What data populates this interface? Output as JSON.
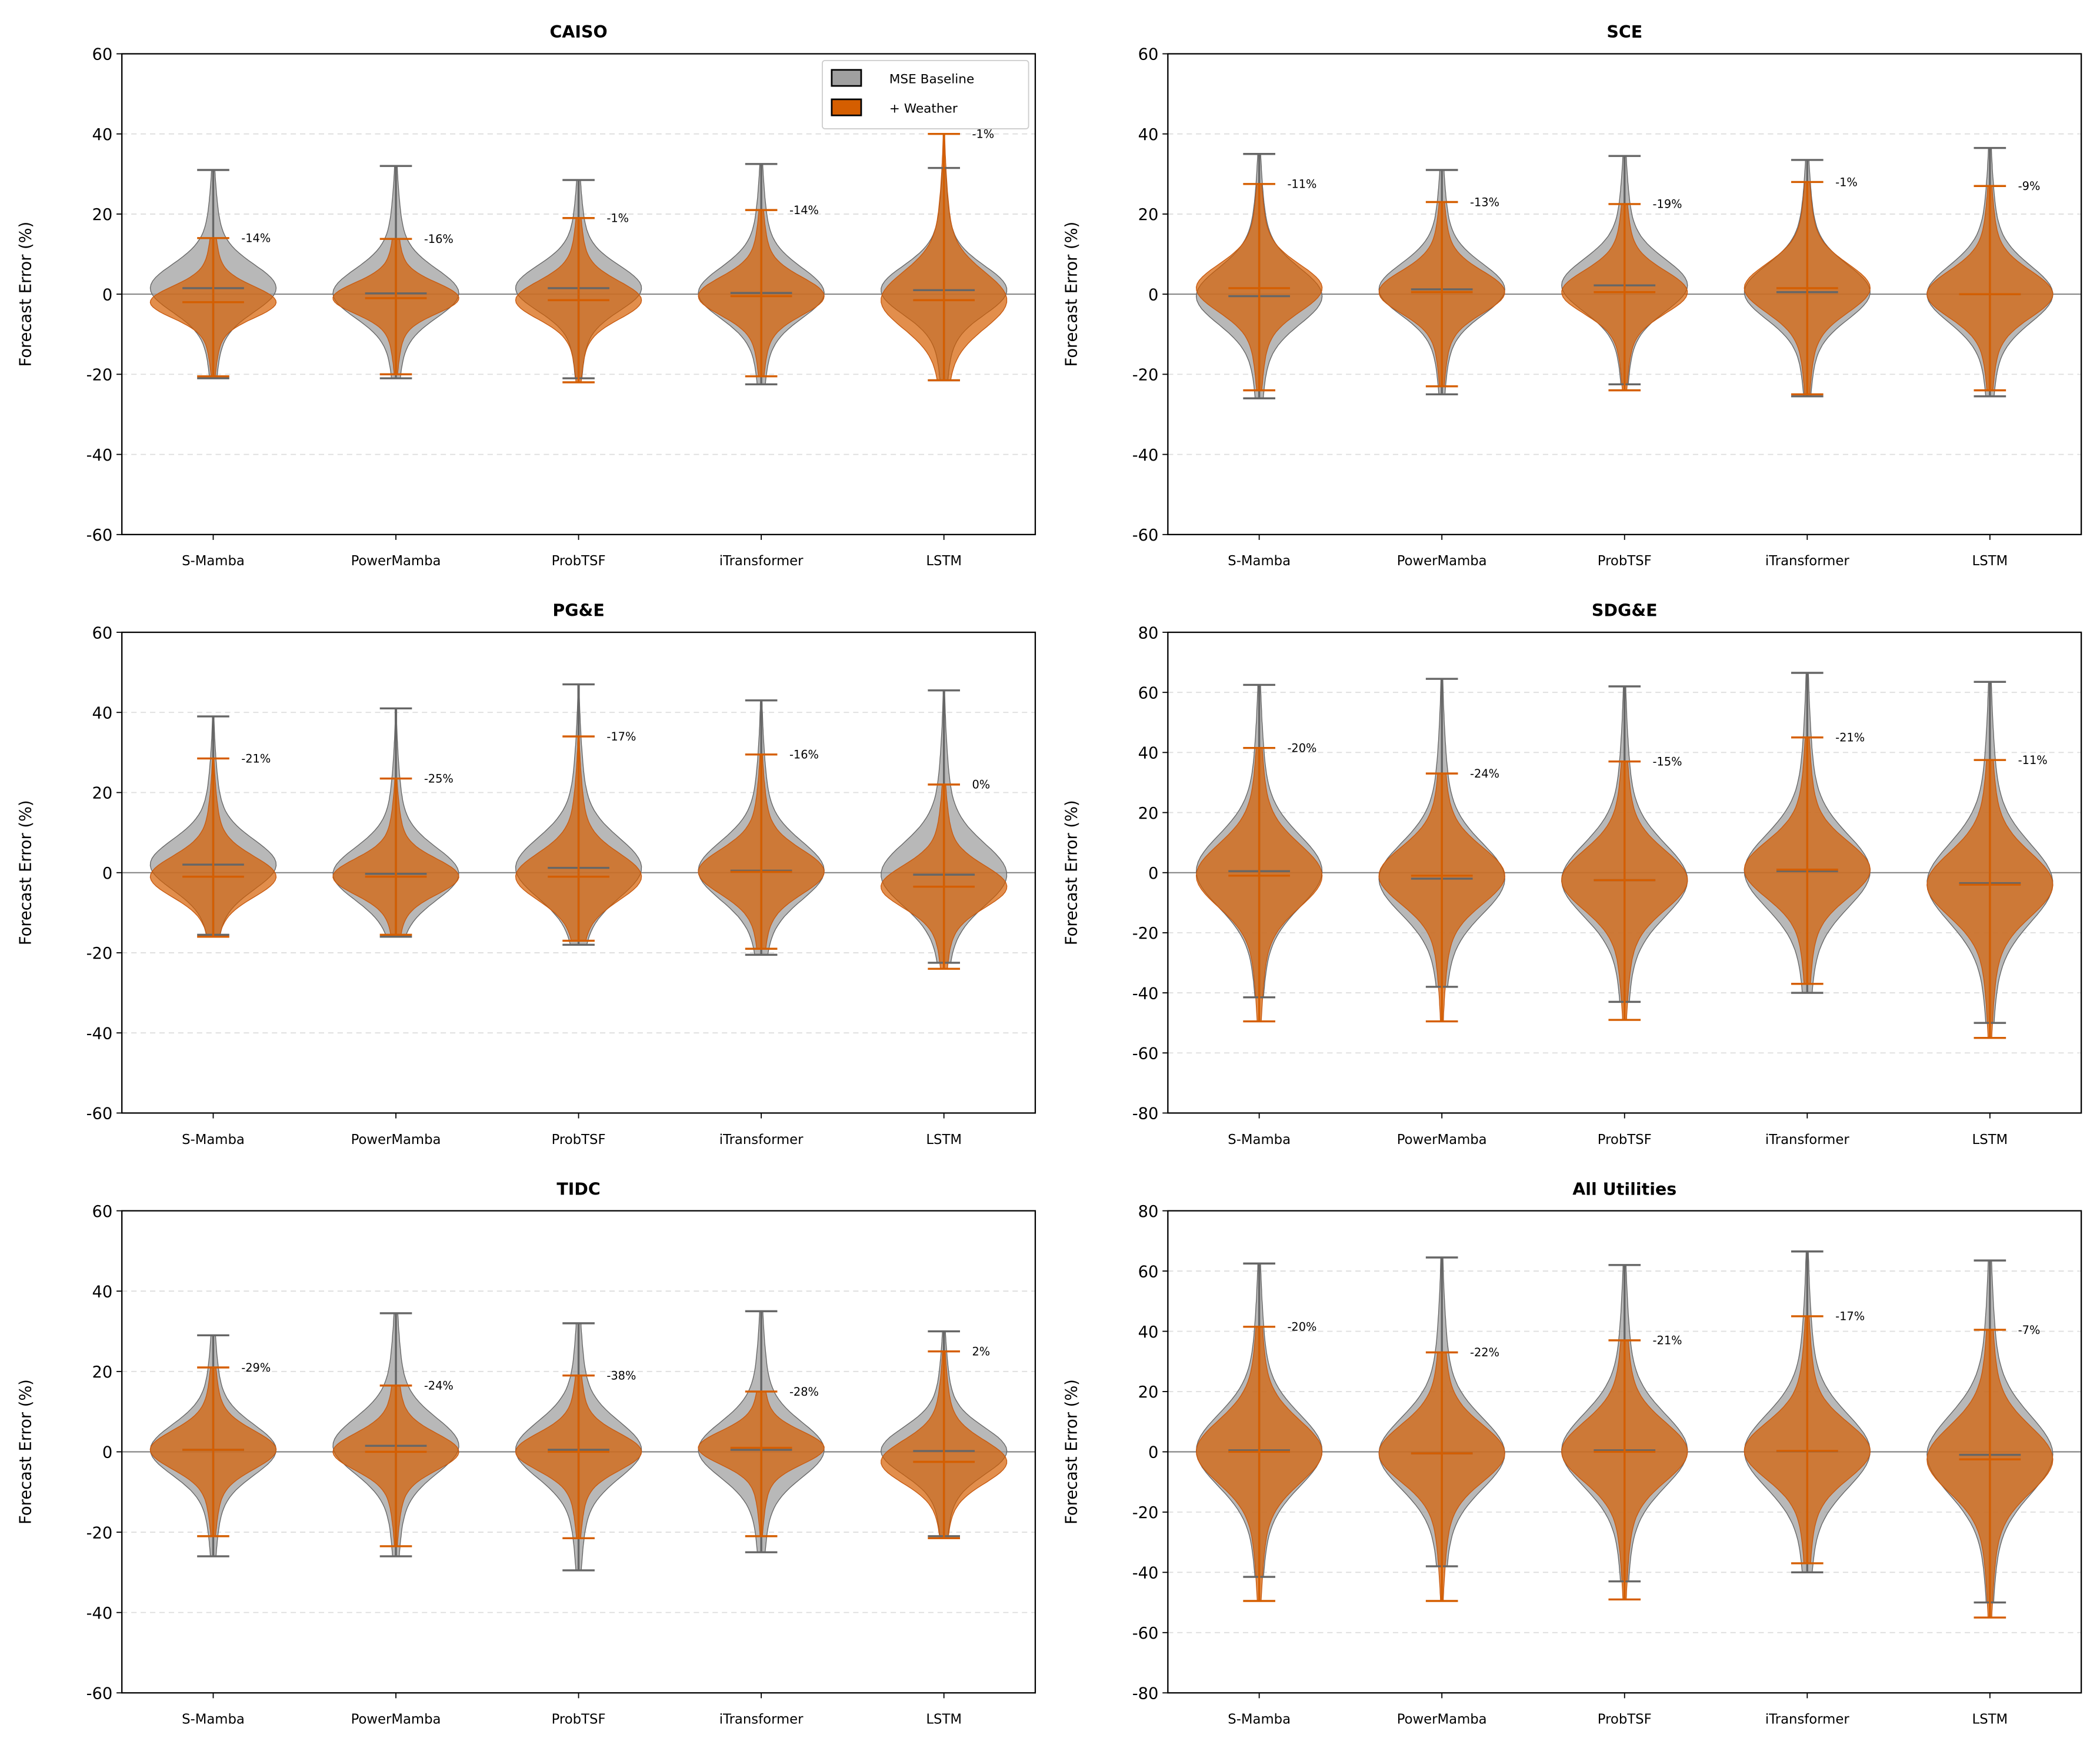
{
  "colors": {
    "baseline_fill": "#a0a0a0",
    "baseline_line": "#666666",
    "weather_fill": "#d55e00",
    "weather_line": "#d55e00",
    "zero_line": "#808080",
    "grid": "#dddddd"
  },
  "legend": {
    "placement": "top-right",
    "panel": 0,
    "items": [
      "MSE Baseline",
      "+ Weather"
    ]
  },
  "chart_data": [
    {
      "type": "violin",
      "title": "CAISO",
      "ylabel": "Forecast Error (%)",
      "ylim": [
        -60,
        60
      ],
      "yticks": [
        -60,
        -40,
        -20,
        0,
        20,
        40,
        60
      ],
      "grid": "dashed-y",
      "categories": [
        "S-Mamba",
        "PowerMamba",
        "ProbTSF",
        "iTransformer",
        "LSTM"
      ],
      "series": [
        {
          "name": "MSE Baseline",
          "max": [
            31,
            32,
            28.5,
            32.5,
            31.5
          ],
          "min": [
            -21,
            -21,
            -21,
            -22.5,
            -21.5
          ],
          "median": [
            1.5,
            0.2,
            1.5,
            0.3,
            1
          ]
        },
        {
          "name": "+ Weather",
          "max": [
            14,
            13.8,
            19,
            21,
            40
          ],
          "min": [
            -20.5,
            -20,
            -22,
            -20.5,
            -21.5
          ],
          "median": [
            -2,
            -1,
            -1.5,
            -0.5,
            -1.5
          ]
        }
      ],
      "annotations": [
        "-14%",
        "-16%",
        "-1%",
        "-14%",
        "-1%"
      ]
    },
    {
      "type": "violin",
      "title": "SCE",
      "ylabel": "Forecast Error (%)",
      "ylim": [
        -60,
        60
      ],
      "yticks": [
        -60,
        -40,
        -20,
        0,
        20,
        40,
        60
      ],
      "grid": "dashed-y",
      "categories": [
        "S-Mamba",
        "PowerMamba",
        "ProbTSF",
        "iTransformer",
        "LSTM"
      ],
      "series": [
        {
          "name": "MSE Baseline",
          "max": [
            35,
            31,
            34.5,
            33.5,
            36.5
          ],
          "min": [
            -26,
            -25,
            -22.5,
            -25.5,
            -25.5
          ],
          "median": [
            -0.5,
            1.2,
            2.2,
            0.5,
            0
          ]
        },
        {
          "name": "+ Weather",
          "max": [
            27.5,
            23,
            22.5,
            28,
            27
          ],
          "min": [
            -24,
            -23,
            -24,
            -25,
            -24
          ],
          "median": [
            1.5,
            0.5,
            0.5,
            1.5,
            0
          ]
        }
      ],
      "annotations": [
        "-11%",
        "-13%",
        "-19%",
        "-1%",
        "-9%"
      ]
    },
    {
      "type": "violin",
      "title": "PG&E",
      "ylabel": "Forecast Error (%)",
      "ylim": [
        -60,
        60
      ],
      "yticks": [
        -60,
        -40,
        -20,
        0,
        20,
        40,
        60
      ],
      "grid": "dashed-y",
      "categories": [
        "S-Mamba",
        "PowerMamba",
        "ProbTSF",
        "iTransformer",
        "LSTM"
      ],
      "series": [
        {
          "name": "MSE Baseline",
          "max": [
            39,
            41,
            47,
            43,
            45.5
          ],
          "min": [
            -15.5,
            -16,
            -18,
            -20.5,
            -22.5
          ],
          "median": [
            2,
            -0.3,
            1.2,
            0.5,
            -0.5
          ]
        },
        {
          "name": "+ Weather",
          "max": [
            28.5,
            23.5,
            34,
            29.5,
            22
          ],
          "min": [
            -16,
            -15.5,
            -17,
            -19,
            -24
          ],
          "median": [
            -1,
            -1,
            -1,
            0.2,
            -3.5
          ]
        }
      ],
      "annotations": [
        "-21%",
        "-25%",
        "-17%",
        "-16%",
        "0%"
      ]
    },
    {
      "type": "violin",
      "title": "SDG&E",
      "ylabel": "Forecast Error (%)",
      "ylim": [
        -80,
        80
      ],
      "yticks": [
        -80,
        -60,
        -40,
        -20,
        0,
        20,
        40,
        60,
        80
      ],
      "grid": "dashed-y",
      "categories": [
        "S-Mamba",
        "PowerMamba",
        "ProbTSF",
        "iTransformer",
        "LSTM"
      ],
      "series": [
        {
          "name": "MSE Baseline",
          "max": [
            62.5,
            64.5,
            62,
            66.5,
            63.5
          ],
          "min": [
            -41.5,
            -38,
            -43,
            -40,
            -50
          ],
          "median": [
            0.5,
            -2,
            -2.5,
            0.5,
            -3.5
          ]
        },
        {
          "name": "+ Weather",
          "max": [
            41.5,
            33,
            37,
            45,
            37.5
          ],
          "min": [
            -49.5,
            -49.5,
            -49,
            -37,
            -55
          ],
          "median": [
            -1,
            -1,
            -2.5,
            1,
            -4
          ]
        }
      ],
      "annotations": [
        "-20%",
        "-24%",
        "-15%",
        "-21%",
        "-11%"
      ]
    },
    {
      "type": "violin",
      "title": "TIDC",
      "ylabel": "Forecast Error (%)",
      "ylim": [
        -60,
        60
      ],
      "yticks": [
        -60,
        -40,
        -20,
        0,
        20,
        40,
        60
      ],
      "grid": "dashed-y",
      "categories": [
        "S-Mamba",
        "PowerMamba",
        "ProbTSF",
        "iTransformer",
        "LSTM"
      ],
      "series": [
        {
          "name": "MSE Baseline",
          "max": [
            29,
            34.5,
            32,
            35,
            30
          ],
          "min": [
            -26,
            -26,
            -29.5,
            -25,
            -21
          ],
          "median": [
            0.5,
            1.5,
            0.5,
            0.5,
            0.2
          ]
        },
        {
          "name": "+ Weather",
          "max": [
            21,
            16.5,
            19,
            15,
            25
          ],
          "min": [
            -21,
            -23.5,
            -21.5,
            -21,
            -21.5
          ],
          "median": [
            0.5,
            0,
            0,
            1,
            -2.5
          ]
        }
      ],
      "annotations": [
        "-29%",
        "-24%",
        "-38%",
        "-28%",
        "2%"
      ]
    },
    {
      "type": "violin",
      "title": "All Utilities",
      "ylabel": "Forecast Error (%)",
      "ylim": [
        -80,
        80
      ],
      "yticks": [
        -80,
        -60,
        -40,
        -20,
        0,
        20,
        40,
        60,
        80
      ],
      "grid": "dashed-y",
      "categories": [
        "S-Mamba",
        "PowerMamba",
        "ProbTSF",
        "iTransformer",
        "LSTM"
      ],
      "series": [
        {
          "name": "MSE Baseline",
          "max": [
            62.5,
            64.5,
            62,
            66.5,
            63.5
          ],
          "min": [
            -41.5,
            -38,
            -43,
            -40,
            -50
          ],
          "median": [
            0.5,
            -0.5,
            0.5,
            0.2,
            -1
          ]
        },
        {
          "name": "+ Weather",
          "max": [
            41.5,
            33,
            37,
            45,
            40.5
          ],
          "min": [
            -49.5,
            -49.5,
            -49,
            -37,
            -55
          ],
          "median": [
            0,
            -0.5,
            0,
            0.3,
            -2.5
          ]
        }
      ],
      "annotations": [
        "-20%",
        "-22%",
        "-21%",
        "-17%",
        "-7%"
      ]
    }
  ]
}
